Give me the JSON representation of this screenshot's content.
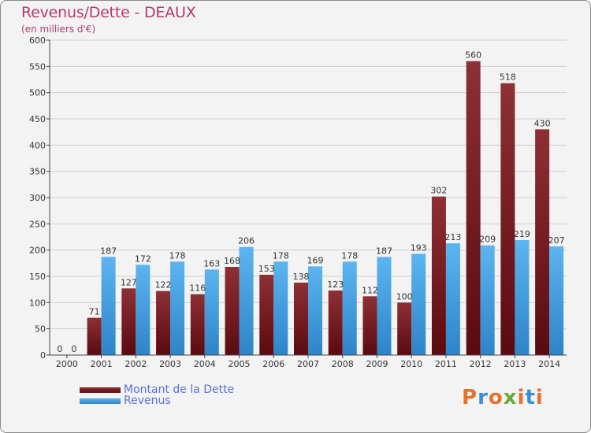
{
  "chart_title": "Revenus/Dette - DEAUX",
  "chart_subtitle": "(en milliers d'€)",
  "legend": [
    {
      "label": "Montant de la Dette",
      "color": "#7a1e24"
    },
    {
      "label": "Revenus",
      "color": "#3d9fe3"
    }
  ],
  "logo": {
    "text": "Proxiti",
    "colors": [
      "#e8702a",
      "#3b8fd9",
      "#e8702a",
      "#6aa83a",
      "#e8702a",
      "#3b8fd9",
      "#e8702a"
    ]
  },
  "chart_data": {
    "type": "bar",
    "categories": [
      "2000",
      "2001",
      "2002",
      "2003",
      "2004",
      "2005",
      "2006",
      "2007",
      "2008",
      "2009",
      "2010",
      "2011",
      "2012",
      "2013",
      "2014"
    ],
    "series": [
      {
        "name": "Montant de la Dette",
        "color": "#7a1e24",
        "values": [
          0,
          71,
          127,
          122,
          116,
          168,
          153,
          138,
          123,
          112,
          100,
          302,
          560,
          518,
          430
        ]
      },
      {
        "name": "Revenus",
        "color": "#3d9fe3",
        "values": [
          0,
          187,
          172,
          178,
          163,
          206,
          178,
          169,
          178,
          187,
          193,
          213,
          209,
          219,
          207
        ]
      }
    ],
    "yticks": [
      0,
      50,
      100,
      150,
      200,
      250,
      300,
      350,
      400,
      450,
      500,
      550,
      600
    ],
    "ylim": [
      0,
      600
    ],
    "grid": true
  }
}
